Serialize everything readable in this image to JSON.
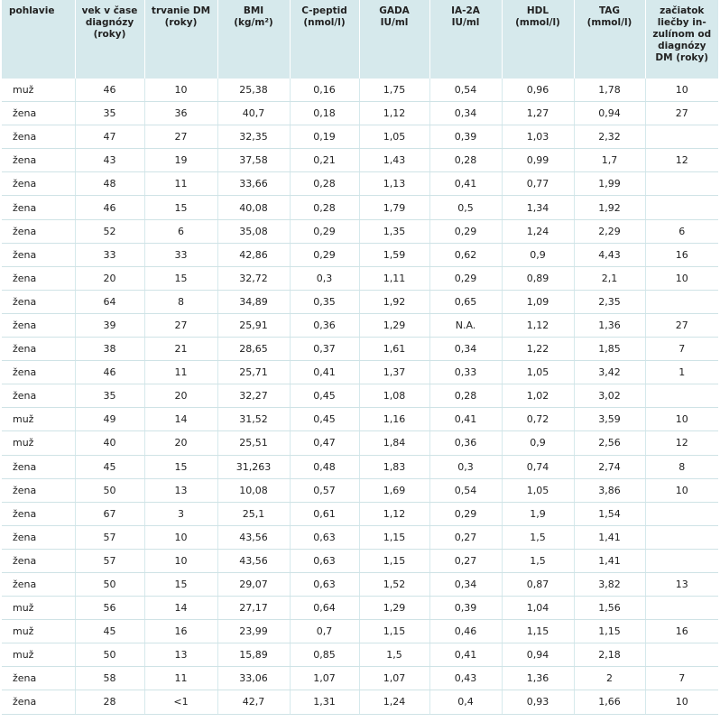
{
  "table": {
    "headers": [
      "pohlavie",
      "vek v čase\ndiagnózy\n(roky)",
      "trvanie DM\n(roky)",
      "BMI\n(kg/m²)",
      "C-peptid\n(nmol/l)",
      "GADA\nIU/ml",
      "IA-2A\nIU/ml",
      "HDL\n(mmol/l)",
      "TAG\n(mmol/l)",
      "začiatok\nliečby in-\nzulínom od\ndiagnózy\nDM (roky)"
    ],
    "rows": [
      [
        "muž",
        "46",
        "10",
        "25,38",
        "0,16",
        "1,75",
        "0,54",
        "0,96",
        "1,78",
        "10"
      ],
      [
        "žena",
        "35",
        "36",
        "40,7",
        "0,18",
        "1,12",
        "0,34",
        "1,27",
        "0,94",
        "27"
      ],
      [
        "žena",
        "47",
        "27",
        "32,35",
        "0,19",
        "1,05",
        "0,39",
        "1,03",
        "2,32",
        ""
      ],
      [
        "žena",
        "43",
        "19",
        "37,58",
        "0,21",
        "1,43",
        "0,28",
        "0,99",
        "1,7",
        "12"
      ],
      [
        "žena",
        "48",
        "11",
        "33,66",
        "0,28",
        "1,13",
        "0,41",
        "0,77",
        "1,99",
        ""
      ],
      [
        "žena",
        "46",
        "15",
        "40,08",
        "0,28",
        "1,79",
        "0,5",
        "1,34",
        "1,92",
        ""
      ],
      [
        "žena",
        "52",
        "6",
        "35,08",
        "0,29",
        "1,35",
        "0,29",
        "1,24",
        "2,29",
        "6"
      ],
      [
        "žena",
        "33",
        "33",
        "42,86",
        "0,29",
        "1,59",
        "0,62",
        "0,9",
        "4,43",
        "16"
      ],
      [
        "žena",
        "20",
        "15",
        "32,72",
        "0,3",
        "1,11",
        "0,29",
        "0,89",
        "2,1",
        "10"
      ],
      [
        "žena",
        "64",
        "8",
        "34,89",
        "0,35",
        "1,92",
        "0,65",
        "1,09",
        "2,35",
        ""
      ],
      [
        "žena",
        "39",
        "27",
        "25,91",
        "0,36",
        "1,29",
        "N.A.",
        "1,12",
        "1,36",
        "27"
      ],
      [
        "žena",
        "38",
        "21",
        "28,65",
        "0,37",
        "1,61",
        "0,34",
        "1,22",
        "1,85",
        "7"
      ],
      [
        "žena",
        "46",
        "11",
        "25,71",
        "0,41",
        "1,37",
        "0,33",
        "1,05",
        "3,42",
        "1"
      ],
      [
        "žena",
        "35",
        "20",
        "32,27",
        "0,45",
        "1,08",
        "0,28",
        "1,02",
        "3,02",
        ""
      ],
      [
        "muž",
        "49",
        "14",
        "31,52",
        "0,45",
        "1,16",
        "0,41",
        "0,72",
        "3,59",
        "10"
      ],
      [
        "muž",
        "40",
        "20",
        "25,51",
        "0,47",
        "1,84",
        "0,36",
        "0,9",
        "2,56",
        "12"
      ],
      [
        "žena",
        "45",
        "15",
        "31,263",
        "0,48",
        "1,83",
        "0,3",
        "0,74",
        "2,74",
        "8"
      ],
      [
        "žena",
        "50",
        "13",
        "10,08",
        "0,57",
        "1,69",
        "0,54",
        "1,05",
        "3,86",
        "10"
      ],
      [
        "žena",
        "67",
        "3",
        "25,1",
        "0,61",
        "1,12",
        "0,29",
        "1,9",
        "1,54",
        ""
      ],
      [
        "žena",
        "57",
        "10",
        "43,56",
        "0,63",
        "1,15",
        "0,27",
        "1,5",
        "1,41",
        ""
      ],
      [
        "žena",
        "57",
        "10",
        "43,56",
        "0,63",
        "1,15",
        "0,27",
        "1,5",
        "1,41",
        ""
      ],
      [
        "žena",
        "50",
        "15",
        "29,07",
        "0,63",
        "1,52",
        "0,34",
        "0,87",
        "3,82",
        "13"
      ],
      [
        "muž",
        "56",
        "14",
        "27,17",
        "0,64",
        "1,29",
        "0,39",
        "1,04",
        "1,56",
        ""
      ],
      [
        "muž",
        "45",
        "16",
        "23,99",
        "0,7",
        "1,15",
        "0,46",
        "1,15",
        "1,15",
        "16"
      ],
      [
        "muž",
        "50",
        "13",
        "15,89",
        "0,85",
        "1,5",
        "0,41",
        "0,94",
        "2,18",
        ""
      ],
      [
        "žena",
        "58",
        "11",
        "33,06",
        "1,07",
        "1,07",
        "0,43",
        "1,36",
        "2",
        "7"
      ],
      [
        "žena",
        "28",
        "<1",
        "42,7",
        "1,31",
        "1,24",
        "0,4",
        "0,93",
        "1,66",
        "10"
      ]
    ],
    "colors": {
      "header_bg": "#d6e9ec",
      "row_border": "#cfe3e6",
      "text": "#222222"
    }
  }
}
